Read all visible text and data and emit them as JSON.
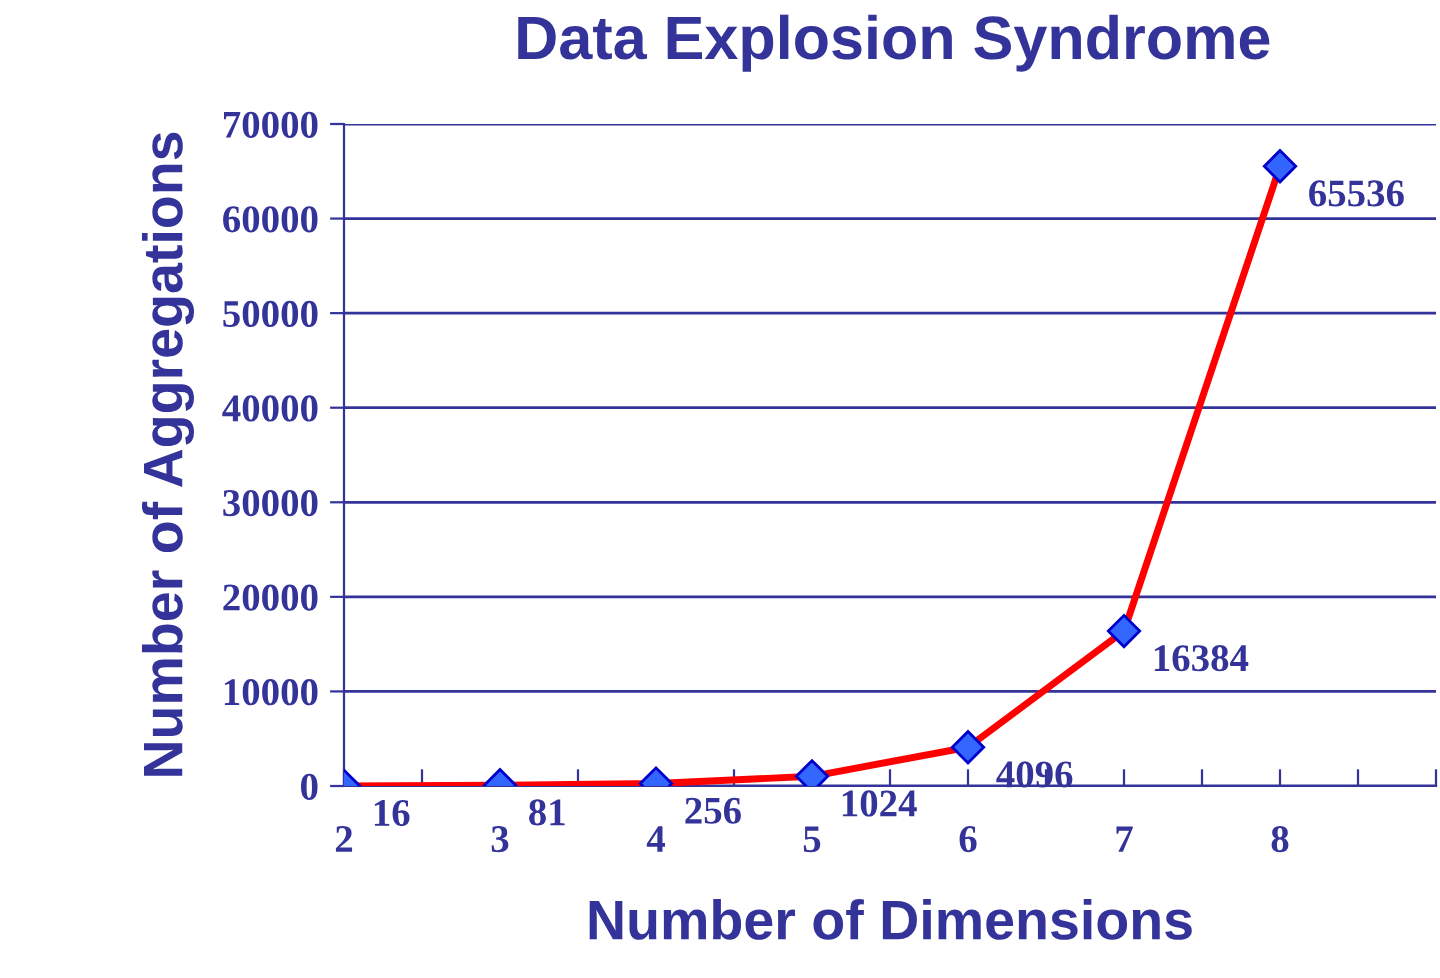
{
  "chart_data": {
    "type": "line",
    "title": "Data Explosion Syndrome",
    "xlabel": "Number of Dimensions",
    "ylabel": "Number of Aggregations",
    "x": [
      2,
      3,
      4,
      5,
      6,
      7,
      8
    ],
    "series": [
      {
        "color": "#ff0000",
        "values": [
          16,
          81,
          256,
          1024,
          4096,
          16384,
          65536
        ]
      }
    ],
    "marker": "diamond",
    "data_labels": true,
    "xlim": [
      2,
      9
    ],
    "xticks": [
      2,
      {
        "value": 2.5,
        "label": null
      },
      3,
      {
        "value": 3.5,
        "label": null
      },
      4,
      {
        "value": 4.5,
        "label": null
      },
      5,
      {
        "value": 5.5,
        "label": null
      },
      6,
      {
        "value": 6.5,
        "label": null
      },
      7,
      {
        "value": 7.5,
        "label": null
      },
      8,
      {
        "value": 8.5,
        "label": null
      },
      {
        "value": 9,
        "label": null
      }
    ],
    "ylim": [
      0,
      70000
    ],
    "yticks": [
      0,
      10000,
      20000,
      30000,
      40000,
      50000,
      60000,
      70000
    ],
    "grid": "y"
  }
}
